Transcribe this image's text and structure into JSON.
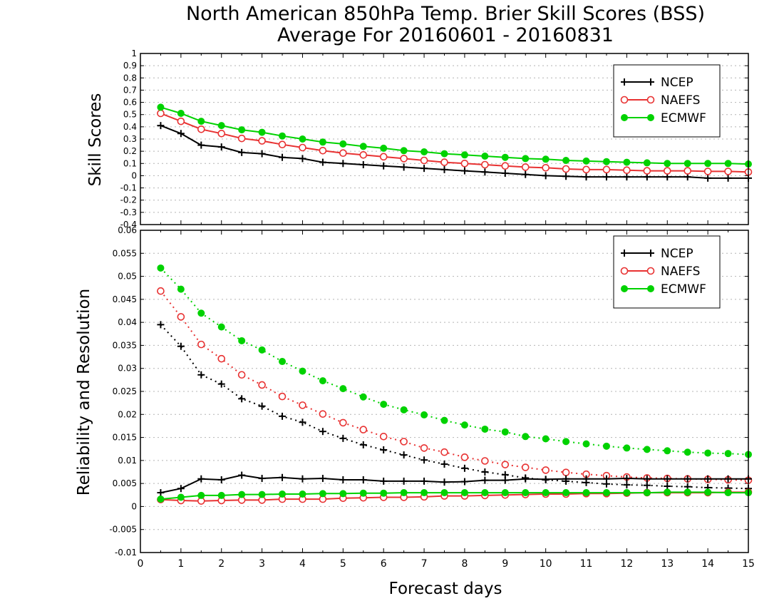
{
  "title_line1": "North American 850hPa Temp. Brier Skill Scores (BSS)",
  "title_line2": "Average For 20160601 - 20160831",
  "colors": {
    "NCEP": "#000000",
    "NAEFS": "#e83232",
    "ECMWF": "#00d200",
    "grid": "#b4b4b4"
  },
  "chart_data": [
    {
      "type": "line",
      "ylabel": "Skill Scores",
      "xlabel": "",
      "xlim": [
        0,
        15
      ],
      "ylim": [
        -0.4,
        1
      ],
      "yticks": [
        "-0.4",
        "-0.3",
        "-0.2",
        "-0.1",
        "0",
        "0.1",
        "0.2",
        "0.3",
        "0.4",
        "0.5",
        "0.6",
        "0.7",
        "0.8",
        "0.9",
        "1"
      ],
      "grid": true,
      "legend_position": "top-right",
      "x": [
        0.5,
        1,
        1.5,
        2,
        2.5,
        3,
        3.5,
        4,
        4.5,
        5,
        5.5,
        6,
        6.5,
        7,
        7.5,
        8,
        8.5,
        9,
        9.5,
        10,
        10.5,
        11,
        11.5,
        12,
        12.5,
        13,
        13.5,
        14,
        14.5,
        15
      ],
      "series": [
        {
          "name": "NCEP",
          "marker": "plus",
          "style": "solid",
          "values": [
            0.41,
            0.345,
            0.25,
            0.235,
            0.19,
            0.18,
            0.15,
            0.14,
            0.11,
            0.1,
            0.09,
            0.08,
            0.07,
            0.06,
            0.05,
            0.04,
            0.03,
            0.02,
            0.01,
            0.0,
            -0.005,
            -0.01,
            -0.01,
            -0.01,
            -0.01,
            -0.01,
            -0.01,
            -0.02,
            -0.02,
            -0.02
          ]
        },
        {
          "name": "NAEFS",
          "marker": "open-circle",
          "style": "solid",
          "values": [
            0.51,
            0.445,
            0.38,
            0.345,
            0.305,
            0.285,
            0.255,
            0.23,
            0.205,
            0.185,
            0.17,
            0.155,
            0.14,
            0.125,
            0.11,
            0.1,
            0.09,
            0.08,
            0.07,
            0.065,
            0.055,
            0.05,
            0.05,
            0.045,
            0.04,
            0.04,
            0.04,
            0.035,
            0.035,
            0.03
          ]
        },
        {
          "name": "ECMWF",
          "marker": "filled-circle",
          "style": "solid",
          "values": [
            0.56,
            0.51,
            0.445,
            0.41,
            0.375,
            0.355,
            0.325,
            0.3,
            0.275,
            0.26,
            0.24,
            0.225,
            0.205,
            0.195,
            0.18,
            0.17,
            0.16,
            0.15,
            0.14,
            0.135,
            0.125,
            0.12,
            0.115,
            0.11,
            0.105,
            0.1,
            0.1,
            0.1,
            0.1,
            0.095
          ]
        }
      ]
    },
    {
      "type": "line",
      "ylabel": "Reliability and Resolution",
      "xlabel": "Forecast days",
      "xlim": [
        0,
        15
      ],
      "ylim": [
        -0.01,
        0.06
      ],
      "yticks": [
        "-0.01",
        "-0.005",
        "0",
        "0.005",
        "0.01",
        "0.015",
        "0.02",
        "0.025",
        "0.03",
        "0.035",
        "0.04",
        "0.045",
        "0.05",
        "0.055",
        "0.06"
      ],
      "xticks": [
        "0",
        "1",
        "2",
        "3",
        "4",
        "5",
        "6",
        "7",
        "8",
        "9",
        "10",
        "11",
        "12",
        "13",
        "14",
        "15"
      ],
      "grid": true,
      "legend_position": "top-right",
      "x": [
        0.5,
        1,
        1.5,
        2,
        2.5,
        3,
        3.5,
        4,
        4.5,
        5,
        5.5,
        6,
        6.5,
        7,
        7.5,
        8,
        8.5,
        9,
        9.5,
        10,
        10.5,
        11,
        11.5,
        12,
        12.5,
        13,
        13.5,
        14,
        14.5,
        15
      ],
      "series": [
        {
          "name": "NCEP",
          "marker": "plus",
          "style": "dotted",
          "values": [
            0.0395,
            0.0348,
            0.0286,
            0.0266,
            0.0234,
            0.0218,
            0.0196,
            0.0183,
            0.0163,
            0.0148,
            0.0134,
            0.0123,
            0.0112,
            0.0101,
            0.0092,
            0.0083,
            0.0075,
            0.0069,
            0.0062,
            0.0058,
            0.0055,
            0.0052,
            0.0049,
            0.0047,
            0.0046,
            0.0044,
            0.0043,
            0.0041,
            0.004,
            0.0039
          ]
        },
        {
          "name": "NAEFS",
          "marker": "open-circle",
          "style": "dotted",
          "values": [
            0.0468,
            0.0412,
            0.0352,
            0.0321,
            0.0286,
            0.0264,
            0.0239,
            0.022,
            0.0201,
            0.0182,
            0.0167,
            0.0152,
            0.0141,
            0.0127,
            0.0118,
            0.0107,
            0.0099,
            0.0091,
            0.0085,
            0.0079,
            0.0074,
            0.007,
            0.0067,
            0.0064,
            0.0062,
            0.0061,
            0.006,
            0.0059,
            0.0058,
            0.0057
          ]
        },
        {
          "name": "ECMWF",
          "marker": "filled-circle",
          "style": "dotted",
          "values": [
            0.0518,
            0.0472,
            0.042,
            0.039,
            0.036,
            0.034,
            0.0315,
            0.0294,
            0.0273,
            0.0256,
            0.0238,
            0.0222,
            0.021,
            0.0199,
            0.0187,
            0.0177,
            0.0168,
            0.0162,
            0.0152,
            0.0147,
            0.0141,
            0.0136,
            0.0131,
            0.0127,
            0.0124,
            0.0121,
            0.0118,
            0.0116,
            0.0115,
            0.0113
          ]
        },
        {
          "name": "",
          "legend": false,
          "marker": "plus",
          "style": "solid",
          "color_of": "NCEP",
          "values": [
            0.003,
            0.0039,
            0.006,
            0.0058,
            0.0068,
            0.0061,
            0.0063,
            0.006,
            0.0061,
            0.0058,
            0.0058,
            0.0055,
            0.0055,
            0.0055,
            0.0053,
            0.0054,
            0.0057,
            0.0057,
            0.006,
            0.0059,
            0.006,
            0.006,
            0.006,
            0.0061,
            0.006,
            0.006,
            0.006,
            0.006,
            0.006,
            0.006
          ]
        },
        {
          "name": "",
          "legend": false,
          "marker": "open-circle",
          "style": "solid",
          "color_of": "NAEFS",
          "values": [
            0.0015,
            0.0013,
            0.0012,
            0.0013,
            0.0014,
            0.0014,
            0.0016,
            0.0016,
            0.0016,
            0.0018,
            0.0019,
            0.002,
            0.002,
            0.0021,
            0.0023,
            0.0023,
            0.0024,
            0.0025,
            0.0026,
            0.0027,
            0.0027,
            0.0028,
            0.0028,
            0.0029,
            0.003,
            0.003,
            0.003,
            0.003,
            0.0031,
            0.0031
          ]
        },
        {
          "name": "",
          "legend": false,
          "marker": "filled-circle",
          "style": "solid",
          "color_of": "ECMWF",
          "values": [
            0.0016,
            0.002,
            0.0024,
            0.0024,
            0.0026,
            0.0026,
            0.0027,
            0.0027,
            0.0028,
            0.0028,
            0.0029,
            0.0029,
            0.003,
            0.003,
            0.003,
            0.003,
            0.003,
            0.003,
            0.003,
            0.003,
            0.003,
            0.003,
            0.003,
            0.003,
            0.003,
            0.0031,
            0.0031,
            0.0031,
            0.003,
            0.003
          ]
        }
      ]
    }
  ]
}
